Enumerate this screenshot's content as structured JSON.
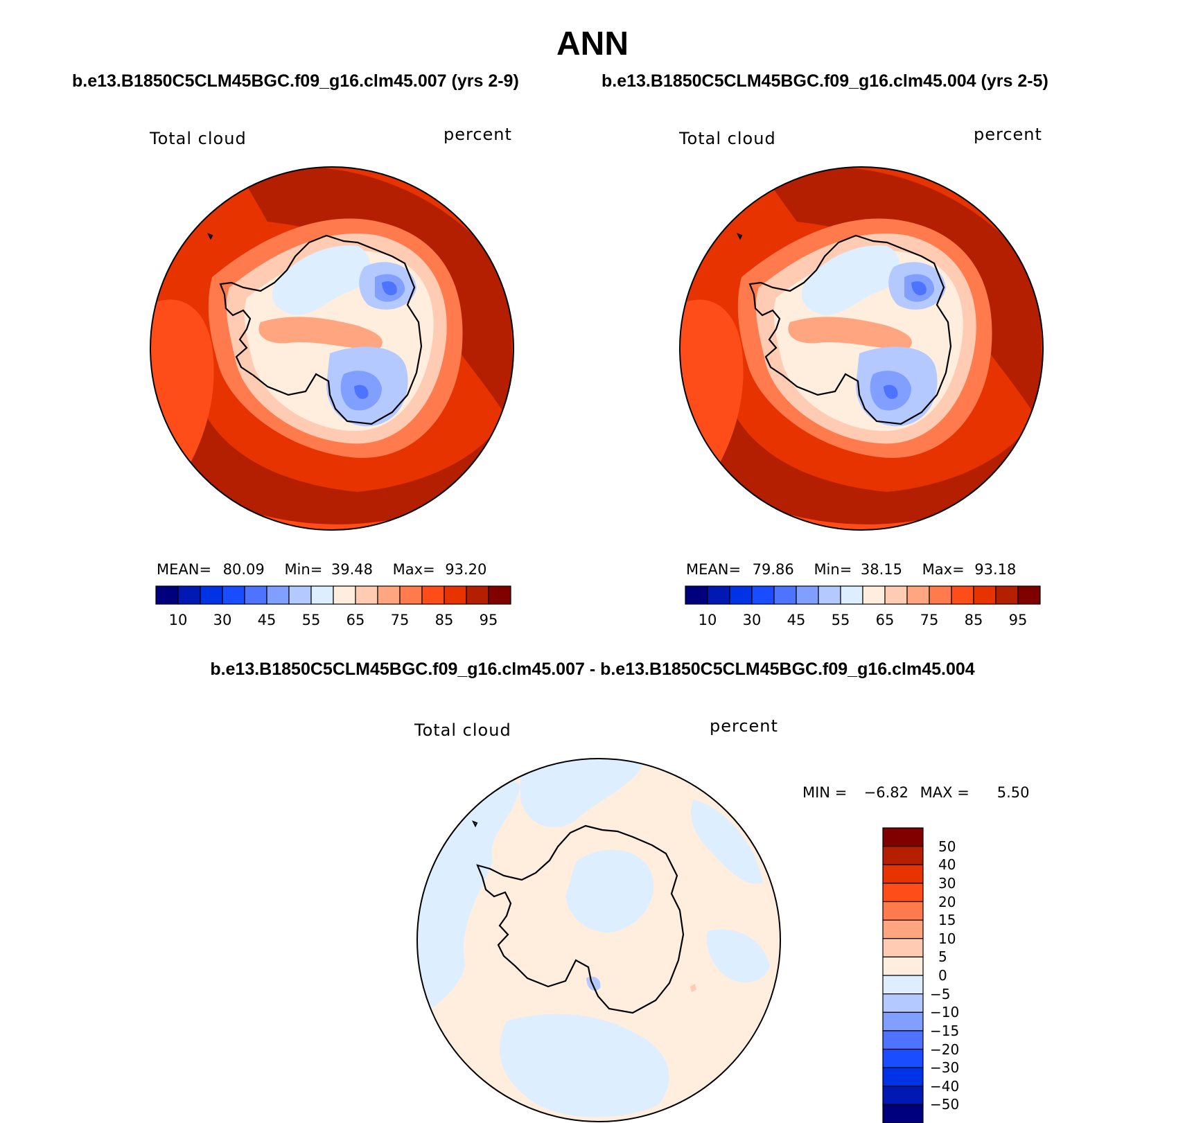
{
  "figure": {
    "title": "ANN",
    "subtitle_left": "b.e13.B1850C5CLM45BGC.f09_g16.clm45.007 (yrs 2-9)",
    "subtitle_right": "b.e13.B1850C5CLM45BGC.f09_g16.clm45.004 (yrs 2-5)",
    "subtitle_diff": "b.e13.B1850C5CLM45BGC.f09_g16.clm45.007 - b.e13.B1850C5CLM45BGC.f09_g16.clm45.004"
  },
  "panels": {
    "left": {
      "variable": "Total cloud",
      "units": "percent",
      "mean_label": "MEAN=",
      "mean": "80.09",
      "min_label": "Min=",
      "min": "39.48",
      "max_label": "Max=",
      "max": "93.20"
    },
    "right": {
      "variable": "Total cloud",
      "units": "percent",
      "mean_label": "MEAN=",
      "mean": "79.86",
      "min_label": "Min=",
      "min": "38.15",
      "max_label": "Max=",
      "max": "93.18"
    },
    "diff": {
      "variable": "Total cloud",
      "units": "percent",
      "min_label": "MIN =",
      "min": "−6.82",
      "max_label": "MAX =",
      "max": "5.50"
    }
  },
  "colorbar_abs": {
    "colors": [
      "#00007f",
      "#0019b3",
      "#0033e6",
      "#1a4dff",
      "#4d73ff",
      "#809fff",
      "#b3c9ff",
      "#dceeff",
      "#ffeedd",
      "#ffccb3",
      "#ffa680",
      "#ff7a4d",
      "#ff4d1a",
      "#e63300",
      "#b31f00",
      "#800000"
    ],
    "tick_labels": [
      "10",
      "30",
      "45",
      "55",
      "65",
      "75",
      "85",
      "95"
    ]
  },
  "colorbar_diff": {
    "colors_top_to_bottom": [
      "#800000",
      "#b31f00",
      "#e63300",
      "#ff4d1a",
      "#ff7a4d",
      "#ffa680",
      "#ffccb3",
      "#ffeedd",
      "#dceeff",
      "#b3c9ff",
      "#809fff",
      "#4d73ff",
      "#1a4dff",
      "#0033e6",
      "#0019b3",
      "#00007f"
    ],
    "tick_labels": [
      "50",
      "40",
      "30",
      "20",
      "15",
      "10",
      "5",
      "0",
      "−5",
      "−10",
      "−15",
      "−20",
      "−30",
      "−40",
      "−50"
    ]
  },
  "map_colors": {
    "ocean_high": "#b31f00",
    "ocean_mid": "#e63300",
    "ocean_low": "#ff4d1a",
    "coast_band": "#ff7a4d",
    "pale_peach": "#ffccb3",
    "interior_light": "#ffeedd",
    "land_light_blue": "#dceeff",
    "land_blue": "#b3c9ff",
    "land_mid_blue": "#809fff",
    "land_deep_blue": "#4d73ff",
    "diff_positive": "#ffeedd",
    "diff_negative": "#dceeff",
    "diff_neg_mid": "#b3c9ff"
  }
}
